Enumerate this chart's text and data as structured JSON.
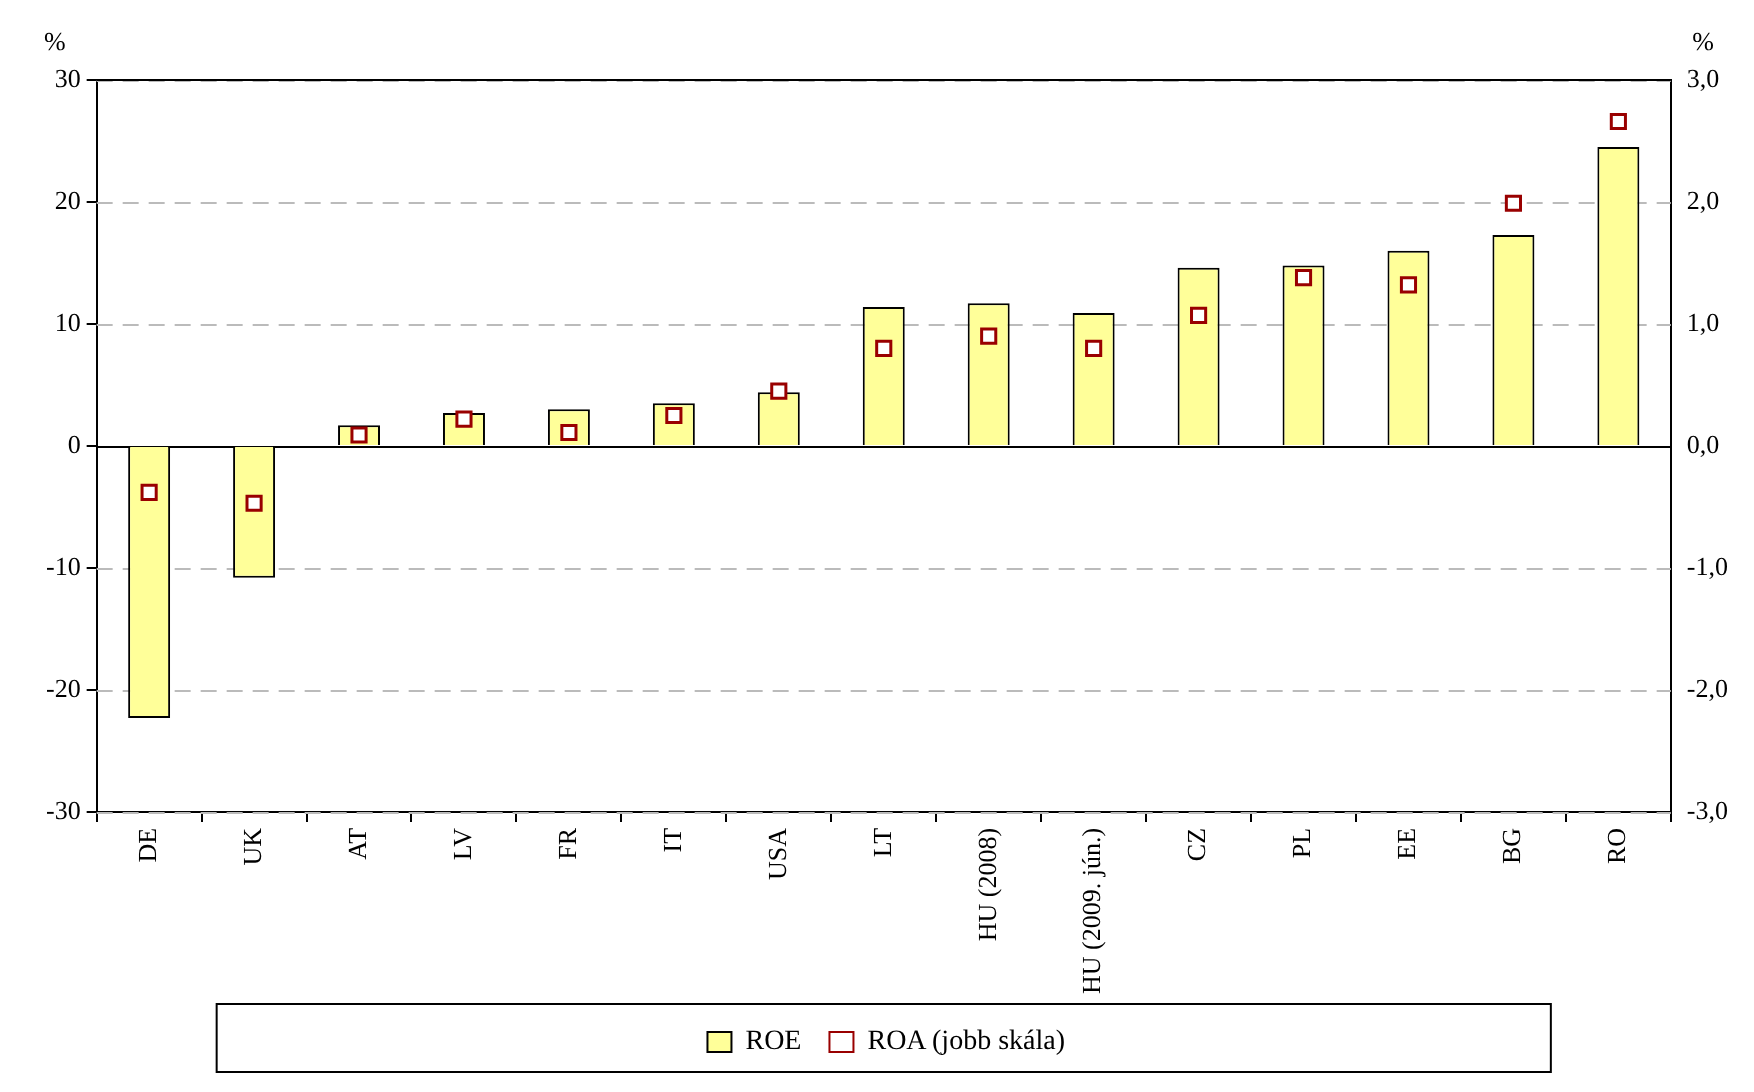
{
  "chart_data": {
    "type": "bar",
    "ylabel": "%",
    "y2label": "%",
    "categories": [
      "DE",
      "UK",
      "AT",
      "LV",
      "FR",
      "IT",
      "USA",
      "LT",
      "HU (2008)",
      "HU (2009. jún.)",
      "CZ",
      "PL",
      "EE",
      "BG",
      "RO"
    ],
    "series": [
      {
        "name": "ROE",
        "color": "#ffff99",
        "values": [
          -22.3,
          -10.8,
          1.7,
          2.7,
          3.0,
          3.5,
          4.4,
          11.4,
          11.7,
          10.9,
          14.6,
          14.8,
          16.0,
          17.3,
          24.5
        ]
      },
      {
        "name": "ROA (jobb skála)",
        "type": "scatter",
        "axis": "y2",
        "color": "#990000",
        "values": [
          -0.38,
          -0.47,
          0.09,
          0.22,
          0.11,
          0.25,
          0.45,
          0.8,
          0.9,
          0.8,
          1.07,
          1.38,
          1.32,
          1.99,
          2.66
        ]
      }
    ],
    "ylim": [
      -30,
      30
    ],
    "yticks": [
      -30,
      -20,
      -10,
      0,
      10,
      20,
      30
    ],
    "y2lim": [
      -3,
      3
    ],
    "y2ticks": [
      {
        "value": -3,
        "label": "-3,0"
      },
      {
        "value": -2,
        "label": "-2,0"
      },
      {
        "value": -1,
        "label": "-1,0"
      },
      {
        "value": 0,
        "label": "0,0"
      },
      {
        "value": 1,
        "label": "1,0"
      },
      {
        "value": 2,
        "label": "2,0"
      },
      {
        "value": 3,
        "label": "3,0"
      }
    ],
    "grid": "y",
    "legend": "bottom",
    "marker": "square"
  }
}
